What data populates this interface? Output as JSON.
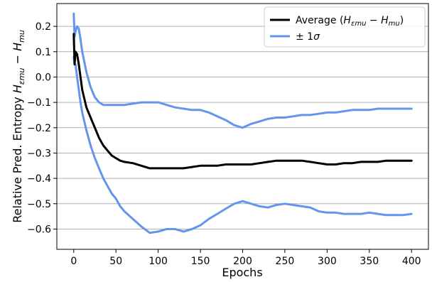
{
  "chart_data": {
    "type": "line",
    "title": "",
    "xlabel": "Epochs",
    "ylabel": "Relative Pred. Entropy Hεmu − Hmu",
    "xlim": [
      -20,
      420
    ],
    "ylim": [
      -0.68,
      0.29
    ],
    "xticks": [
      0,
      50,
      100,
      150,
      200,
      250,
      300,
      350,
      400
    ],
    "yticks": [
      0.2,
      0.1,
      0.0,
      -0.1,
      -0.2,
      -0.3,
      -0.4,
      -0.5,
      -0.6
    ],
    "ytick_labels": [
      "0.2",
      "0.1",
      "0.0",
      "−0.1",
      "−0.2",
      "−0.3",
      "−0.4",
      "−0.5",
      "−0.6"
    ],
    "grid": "horizontal",
    "legend_position": "top-right",
    "series": [
      {
        "name": "Average (Hεmu − Hmu)",
        "color": "#000000",
        "x": [
          0,
          1,
          2,
          4,
          6,
          8,
          10,
          15,
          20,
          25,
          30,
          35,
          40,
          45,
          50,
          55,
          60,
          70,
          80,
          90,
          100,
          110,
          120,
          130,
          140,
          150,
          160,
          170,
          180,
          190,
          200,
          210,
          220,
          230,
          240,
          250,
          260,
          270,
          280,
          290,
          300,
          310,
          320,
          330,
          340,
          350,
          360,
          370,
          380,
          390,
          400
        ],
        "y": [
          0.17,
          0.05,
          0.1,
          0.09,
          0.05,
          0.0,
          -0.05,
          -0.12,
          -0.16,
          -0.2,
          -0.24,
          -0.27,
          -0.29,
          -0.31,
          -0.32,
          -0.33,
          -0.335,
          -0.34,
          -0.35,
          -0.36,
          -0.36,
          -0.36,
          -0.36,
          -0.36,
          -0.355,
          -0.35,
          -0.35,
          -0.35,
          -0.345,
          -0.345,
          -0.345,
          -0.345,
          -0.34,
          -0.335,
          -0.33,
          -0.33,
          -0.33,
          -0.33,
          -0.335,
          -0.34,
          -0.345,
          -0.345,
          -0.34,
          -0.34,
          -0.335,
          -0.335,
          -0.335,
          -0.33,
          -0.33,
          -0.33,
          -0.33
        ]
      },
      {
        "name": "± 1σ",
        "color": "#6495ED",
        "x": [
          0,
          1,
          2,
          4,
          6,
          8,
          10,
          15,
          20,
          25,
          30,
          35,
          40,
          45,
          50,
          55,
          60,
          70,
          80,
          90,
          100,
          110,
          120,
          130,
          140,
          150,
          160,
          170,
          180,
          190,
          200,
          210,
          220,
          230,
          240,
          250,
          260,
          270,
          280,
          290,
          300,
          310,
          320,
          330,
          340,
          350,
          360,
          370,
          380,
          390,
          400
        ],
        "y": [
          0.25,
          0.16,
          0.18,
          0.2,
          0.19,
          0.15,
          0.1,
          0.02,
          -0.04,
          -0.08,
          -0.1,
          -0.11,
          -0.11,
          -0.11,
          -0.11,
          -0.11,
          -0.11,
          -0.105,
          -0.1,
          -0.1,
          -0.1,
          -0.11,
          -0.12,
          -0.125,
          -0.13,
          -0.13,
          -0.14,
          -0.155,
          -0.17,
          -0.19,
          -0.2,
          -0.185,
          -0.175,
          -0.165,
          -0.16,
          -0.16,
          -0.155,
          -0.15,
          -0.15,
          -0.145,
          -0.14,
          -0.14,
          -0.135,
          -0.13,
          -0.13,
          -0.13,
          -0.125,
          -0.125,
          -0.125,
          -0.125,
          -0.125
        ]
      },
      {
        "name": "",
        "color": "#6495ED",
        "x": [
          0,
          1,
          2,
          4,
          6,
          8,
          10,
          15,
          20,
          25,
          30,
          35,
          40,
          45,
          50,
          55,
          60,
          70,
          80,
          90,
          100,
          110,
          120,
          130,
          140,
          150,
          160,
          170,
          180,
          190,
          200,
          210,
          220,
          230,
          240,
          250,
          260,
          270,
          280,
          290,
          300,
          310,
          320,
          330,
          340,
          350,
          360,
          370,
          380,
          390,
          400
        ],
        "y": [
          0.08,
          0.05,
          0.05,
          0.0,
          -0.05,
          -0.1,
          -0.14,
          -0.21,
          -0.27,
          -0.32,
          -0.36,
          -0.4,
          -0.43,
          -0.46,
          -0.48,
          -0.51,
          -0.53,
          -0.56,
          -0.59,
          -0.615,
          -0.61,
          -0.6,
          -0.6,
          -0.61,
          -0.6,
          -0.585,
          -0.56,
          -0.54,
          -0.52,
          -0.5,
          -0.49,
          -0.5,
          -0.51,
          -0.515,
          -0.505,
          -0.5,
          -0.505,
          -0.51,
          -0.515,
          -0.53,
          -0.535,
          -0.535,
          -0.54,
          -0.54,
          -0.54,
          -0.535,
          -0.54,
          -0.545,
          -0.545,
          -0.545,
          -0.54
        ]
      }
    ]
  }
}
